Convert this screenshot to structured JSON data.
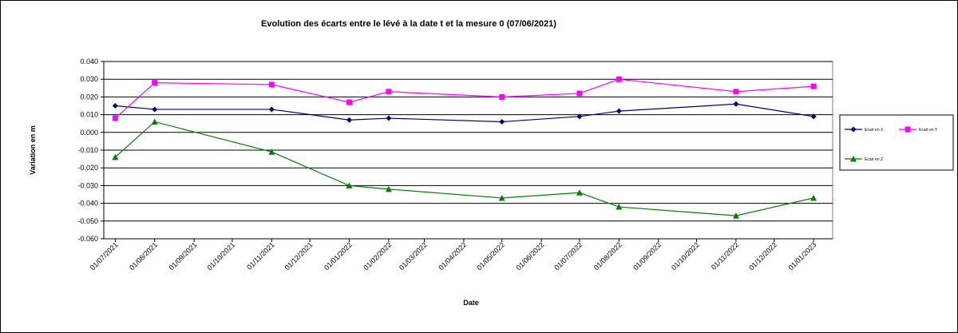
{
  "chart_data": {
    "type": "line",
    "title": "Evolution des écarts entre le lévé à la date t et la mesure 0 (07/06/2021)",
    "xlabel": "Date",
    "ylabel": "Variation en m",
    "ylim": [
      -0.06,
      0.04
    ],
    "yticks": [
      "0.040",
      "0.030",
      "0.020",
      "0.010",
      "0.000",
      "-0.010",
      "-0.020",
      "-0.030",
      "-0.040",
      "-0.050",
      "-0.060"
    ],
    "xlim": [
      "2021-06-22",
      "2023-01-16"
    ],
    "xticks": [
      "01/07/2021",
      "01/08/2021",
      "01/09/2021",
      "01/10/2021",
      "01/11/2021",
      "01/12/2021",
      "01/01/2022",
      "01/02/2022",
      "01/03/2022",
      "01/04/2022",
      "01/05/2022",
      "01/06/2022",
      "01/07/2022",
      "01/08/2022",
      "01/09/2022",
      "01/10/2022",
      "01/11/2022",
      "01/12/2022",
      "01/01/2023"
    ],
    "x": [
      "2021-07-01",
      "2021-08-01",
      "2021-11-01",
      "2022-01-01",
      "2022-02-01",
      "2022-05-01",
      "2022-07-01",
      "2022-08-01",
      "2022-11-01",
      "2023-01-01"
    ],
    "grid": true,
    "legend_position": "right",
    "series": [
      {
        "name": "Ecart en X",
        "color": "#000080",
        "marker": "diamond",
        "values": [
          0.015,
          0.013,
          0.013,
          0.007,
          0.008,
          0.006,
          0.009,
          0.012,
          0.016,
          0.009
        ]
      },
      {
        "name": "Ecart en Y",
        "color": "#ff00ff",
        "marker": "square",
        "values": [
          0.008,
          0.028,
          0.027,
          0.017,
          0.023,
          0.02,
          0.022,
          0.03,
          0.023,
          0.026
        ]
      },
      {
        "name": "Ecart en Z",
        "color": "#008000",
        "marker": "triangle",
        "values": [
          -0.014,
          0.006,
          -0.011,
          -0.03,
          -0.032,
          -0.037,
          -0.034,
          -0.042,
          -0.047,
          -0.037
        ]
      }
    ]
  }
}
